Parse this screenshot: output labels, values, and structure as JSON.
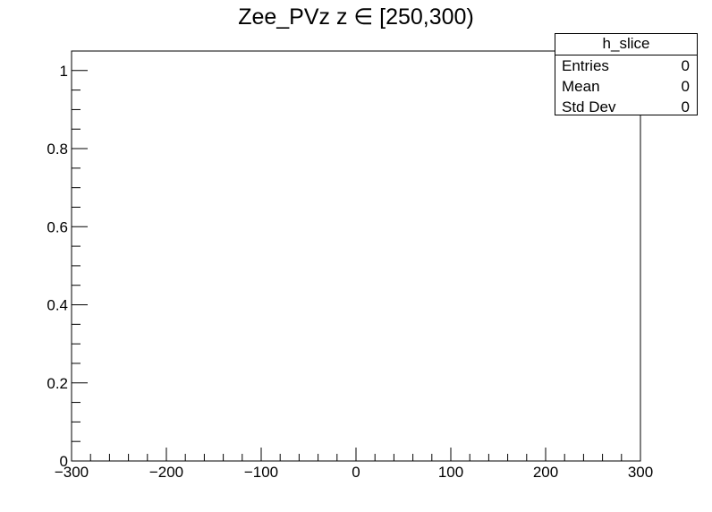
{
  "chart_data": {
    "type": "histogram",
    "title": "Zee_PVz z  ∈ [250,300)",
    "xlabel": "",
    "ylabel": "",
    "xlim": [
      -300,
      300
    ],
    "ylim": [
      0,
      1.05
    ],
    "x_ticks": [
      -300,
      -200,
      -100,
      0,
      100,
      200,
      300
    ],
    "x_tick_labels": [
      "−300",
      "−200",
      "−100",
      "0",
      "100",
      "200",
      "300"
    ],
    "y_ticks": [
      0,
      0.2,
      0.4,
      0.6,
      0.8,
      1
    ],
    "y_tick_labels": [
      "0",
      "0.2",
      "0.4",
      "0.6",
      "0.8",
      "1"
    ],
    "series": [],
    "grid": false,
    "stats_box": {
      "name": "h_slice",
      "rows": [
        {
          "label": "Entries",
          "value": "0"
        },
        {
          "label": "Mean",
          "value": "0"
        },
        {
          "label": "Std Dev",
          "value": "0"
        }
      ]
    }
  }
}
